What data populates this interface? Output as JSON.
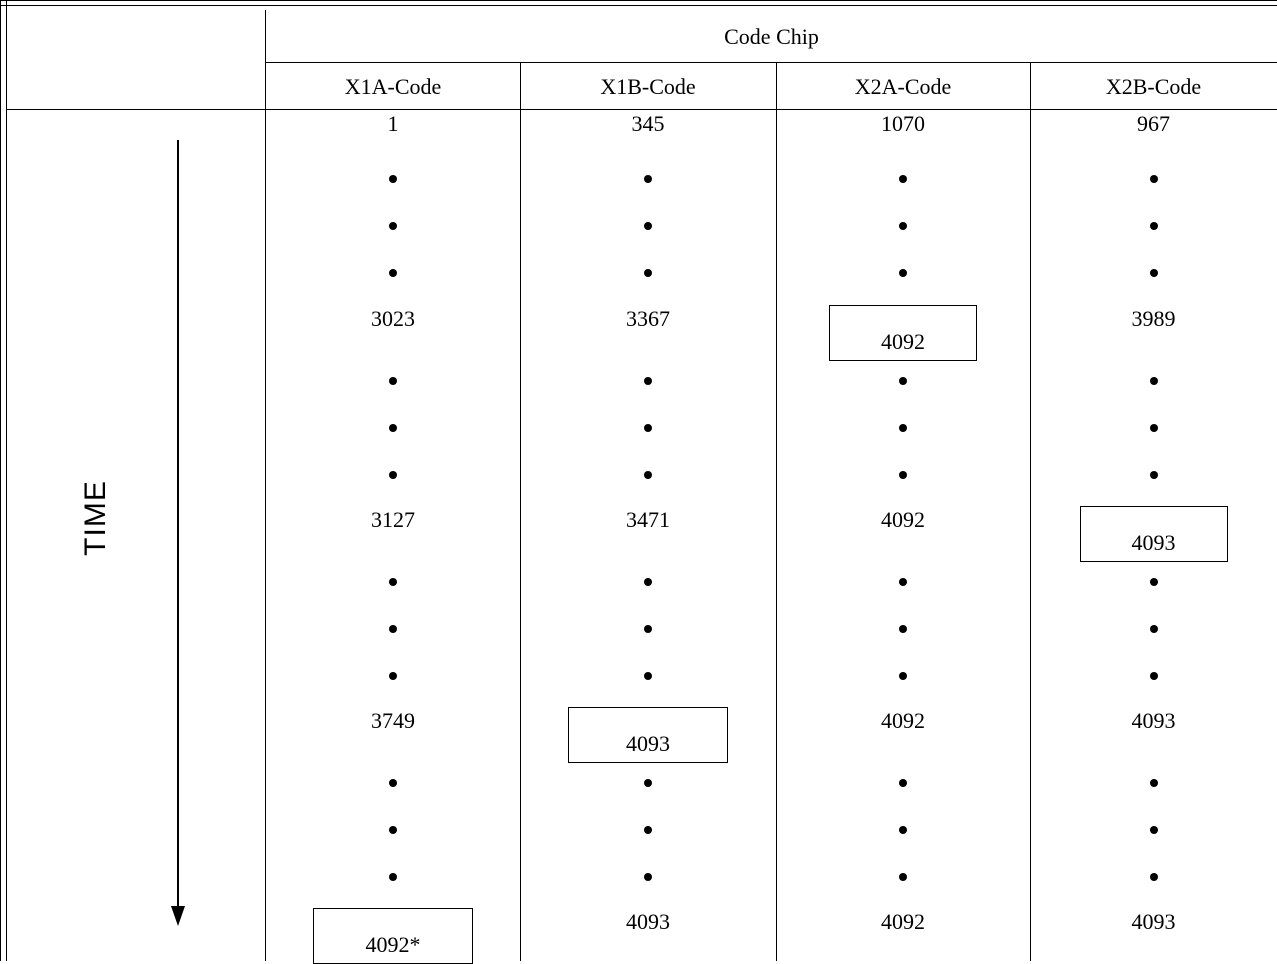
{
  "table": {
    "super_header": "Code Chip",
    "time_label": "TIME",
    "columns": [
      "X1A-Code",
      "X1B-Code",
      "X2A-Code",
      "X2B-Code"
    ],
    "rows": [
      [
        "1",
        "345",
        "1070",
        "967"
      ],
      [
        "3023",
        "3367",
        "4092",
        "3989"
      ],
      [
        "3127",
        "3471",
        "4092",
        "4093"
      ],
      [
        "3749",
        "4093",
        "4092",
        "4093"
      ],
      [
        "4092*",
        "4093",
        "4092",
        "4093"
      ]
    ],
    "boxed_cells": [
      {
        "row": 1,
        "col": 2
      },
      {
        "row": 2,
        "col": 3
      },
      {
        "row": 3,
        "col": 1
      },
      {
        "row": 4,
        "col": 0
      }
    ]
  }
}
